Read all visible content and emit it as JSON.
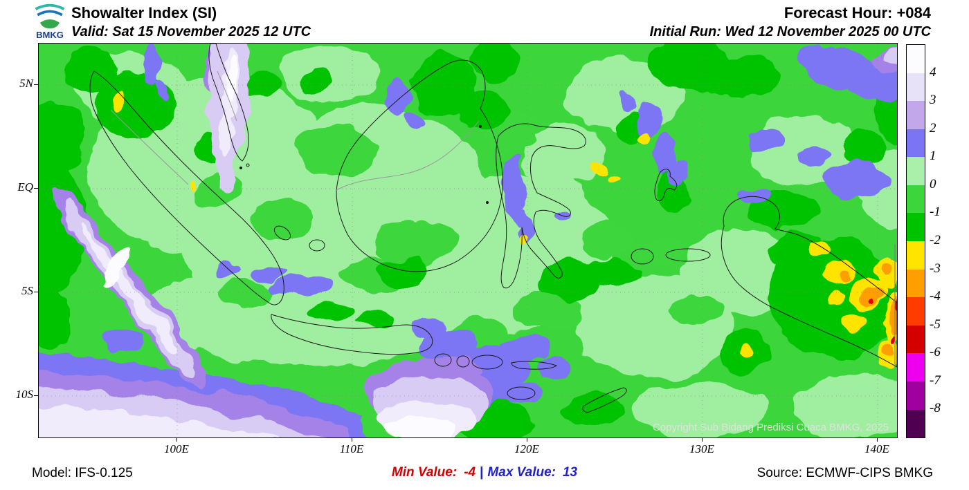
{
  "header": {
    "logo_text": "BMKG",
    "title": "Showalter Index (SI)",
    "valid": "Valid: Sat 15 November 2025 12 UTC",
    "forecast_hour": "Forecast Hour: +084",
    "initial_run": "Initial Run: Wed 12 November 2025 00 UTC"
  },
  "map": {
    "copyright": "Copyright Sub Bidang Prediksi Cuaca BMKG, 2025",
    "y_ticks": [
      "5N",
      "EQ",
      "5S",
      "10S"
    ],
    "x_ticks": [
      "100E",
      "110E",
      "120E",
      "130E",
      "140E"
    ]
  },
  "colorbar": {
    "labels": [
      "4",
      "3",
      "2",
      "1",
      "0",
      "-1",
      "-2",
      "-3",
      "-4",
      "-5",
      "-6",
      "-7",
      "-8"
    ],
    "colors": [
      "#fcfcff",
      "#e8e2f8",
      "#c2a8ea",
      "#7b74f4",
      "#aaf0aa",
      "#3cd63c",
      "#00c300",
      "#ffe400",
      "#ff9e00",
      "#ff3c00",
      "#d40000",
      "#ee00ee",
      "#a000a0",
      "#500050"
    ]
  },
  "footer": {
    "model": "Model: IFS-0.125",
    "min_label": "Min Value:",
    "min_value": "-4",
    "separator": "|",
    "max_label": "Max Value:",
    "max_value": "13",
    "source": "Source: ECMWF-CIPS BMKG"
  },
  "palette": {
    "land_neutral_green": "#3cd63c",
    "light_green": "#a0eea0",
    "dark_green": "#00c300",
    "blue": "#7b74f4",
    "purple": "#a482e8",
    "lavender": "#d8ccf4",
    "pale": "#f0ecfc",
    "yellow": "#ffe400",
    "orange": "#ff9e00",
    "red": "#e00000",
    "min_text_color": "#d40000",
    "max_text_color": "#2020cc"
  }
}
